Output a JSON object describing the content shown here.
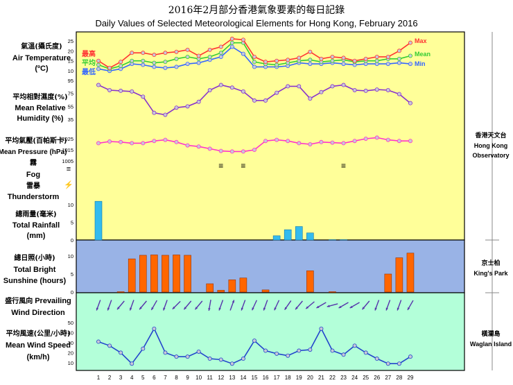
{
  "title_zh": "2016年2月部分香港氣象要素的每日記錄",
  "title_en": "Daily Values of Selected Meteorological Elements for Hong Kong, February 2016",
  "labels": {
    "temp_zh": "氣溫(攝氏度)",
    "temp_en1": "Air Temperature",
    "temp_en2": "(ºC)",
    "hum_zh": "平均相對濕度(%)",
    "hum_en1": "Mean Relative",
    "hum_en2": "Humidity (%)",
    "pres_zh": "平均氣壓(百帕斯卡)",
    "pres_en": "Mean Pressure (hPa)",
    "fog_zh": "霧",
    "fog_en": "Fog",
    "fog_symbol": "≡",
    "thunder_zh": "雷暴",
    "thunder_en": "Thunderstorm",
    "thunder_symbol": "⚡",
    "rain_zh": "總雨量(毫米)",
    "rain_en1": "Total Rainfall",
    "rain_en2": "(mm)",
    "sun_zh": "總日照(小時)",
    "sun_en1": "Total Bright",
    "sun_en2": "Sunshine (hours)",
    "wdir_zh": "盛行風向",
    "wdir_en1": "Prevailing",
    "wdir_en2": "Wind Direction",
    "wspd_zh": "平均風速(公里/小時)",
    "wspd_en1": "Mean Wind Speed",
    "wspd_en2": "(km/h)"
  },
  "stations": {
    "hko_zh": "香港天文台",
    "hko_en1": "Hong Kong",
    "hko_en2": "Observatory",
    "kp_zh": "京士柏",
    "kp_en": "King's Park",
    "wi_zh": "橫瀾島",
    "wi_en": "Waglan Island"
  },
  "colors": {
    "panel_yellow": "#ffff99",
    "panel_blue": "#99b3e6",
    "panel_green": "#b3ffd9",
    "max": "#ff3333",
    "mean": "#33cc33",
    "min": "#3366ff",
    "humidity": "#8833cc",
    "pressure": "#ff33cc",
    "rain": "#33bbee",
    "sunshine": "#ff6600",
    "wind_dir": "#5533aa",
    "wind_speed": "#2244cc"
  },
  "chart_data": {
    "type": "line",
    "days": [
      1,
      2,
      3,
      4,
      5,
      6,
      7,
      8,
      9,
      10,
      11,
      12,
      13,
      14,
      15,
      16,
      17,
      18,
      19,
      20,
      21,
      22,
      23,
      24,
      25,
      26,
      27,
      28,
      29
    ],
    "temperature": {
      "labels_zh": {
        "max": "最高",
        "mean": "平均",
        "min": "最低"
      },
      "legend": {
        "max": "Max",
        "mean": "Mean",
        "min": "Min"
      },
      "ticks": [
        10,
        15,
        20,
        25
      ],
      "ylim": [
        8,
        27
      ],
      "max": [
        15,
        11.5,
        14.5,
        19,
        19,
        18,
        19,
        19.5,
        20.5,
        17.5,
        20.5,
        22,
        26,
        25.5,
        17,
        14.5,
        15,
        15.5,
        16.5,
        19.5,
        16,
        17,
        16.5,
        15,
        16,
        17,
        17,
        20,
        24
      ],
      "mean": [
        13,
        11,
        12.5,
        15,
        15,
        14,
        14.5,
        16,
        17,
        16,
        17,
        19,
        24,
        24,
        14.5,
        13.5,
        13,
        14,
        15,
        15.5,
        14.5,
        15,
        15.5,
        14.5,
        15,
        15,
        16,
        16,
        17.5
      ],
      "min": [
        11,
        10,
        11,
        13.5,
        13,
        12,
        11.5,
        12,
        13.5,
        14,
        15.5,
        17,
        22,
        18.5,
        12,
        12,
        12,
        12.5,
        14,
        13.5,
        13.5,
        14,
        13.5,
        13,
        13.5,
        13.5,
        13.5,
        14,
        13.5
      ]
    },
    "humidity": {
      "ticks": [
        35,
        55,
        75,
        95
      ],
      "ylim": [
        35,
        95
      ],
      "values": [
        88,
        80,
        79,
        78,
        70,
        45,
        42,
        53,
        55,
        62,
        80,
        88,
        84,
        78,
        64,
        64,
        76,
        86,
        86,
        67,
        77,
        86,
        88,
        80,
        79,
        81,
        80,
        74,
        60
      ]
    },
    "pressure": {
      "ticks": [
        1005,
        1015,
        1025
      ],
      "ylim": [
        1005,
        1025
      ],
      "values": [
        1021,
        1022.5,
        1022,
        1021,
        1021,
        1023,
        1024,
        1022,
        1019,
        1018,
        1016,
        1014,
        1013.5,
        1013.5,
        1015,
        1023,
        1024,
        1023,
        1021,
        1020,
        1022,
        1021.5,
        1021,
        1023,
        1025,
        1026,
        1024,
        1023,
        1023
      ]
    },
    "fog_days": [
      12,
      14,
      23
    ],
    "thunderstorm_days": [],
    "rainfall": {
      "ticks": [
        0,
        5,
        10
      ],
      "ylim": [
        0,
        12.5
      ],
      "values": [
        10.9,
        0,
        0,
        0,
        0,
        0,
        0,
        0,
        0,
        0,
        0,
        0,
        0,
        0,
        0,
        0,
        1.2,
        2.9,
        3.8,
        2.0,
        0,
        0.1,
        0.1,
        0,
        0,
        0,
        0,
        0,
        0
      ]
    },
    "sunshine": {
      "ticks": [
        0,
        5,
        10
      ],
      "ylim": [
        0,
        12.5
      ],
      "values": [
        0,
        0,
        0.1,
        9.2,
        10.2,
        10.3,
        10.2,
        10.3,
        10.2,
        0,
        2.3,
        0.5,
        3.4,
        3.9,
        0,
        0.6,
        0,
        0,
        0,
        5.9,
        0,
        0.1,
        0,
        0,
        0,
        0,
        5.0,
        9.5,
        10.8
      ]
    },
    "wind_direction_deg": [
      20,
      20,
      40,
      20,
      40,
      30,
      20,
      45,
      40,
      40,
      10,
      20,
      200,
      20,
      25,
      20,
      25,
      35,
      40,
      50,
      60,
      75,
      60,
      60,
      40,
      20,
      20,
      20,
      30
    ],
    "wind_speed": {
      "ticks": [
        10,
        20,
        30,
        40,
        50
      ],
      "ylim": [
        5,
        55
      ],
      "values": [
        31,
        27,
        20,
        9,
        24,
        44,
        20,
        16,
        16,
        21,
        14,
        13,
        9,
        14,
        32,
        22,
        19,
        17,
        22,
        23,
        44,
        22,
        18,
        27,
        20,
        14,
        9,
        9,
        16
      ]
    }
  }
}
